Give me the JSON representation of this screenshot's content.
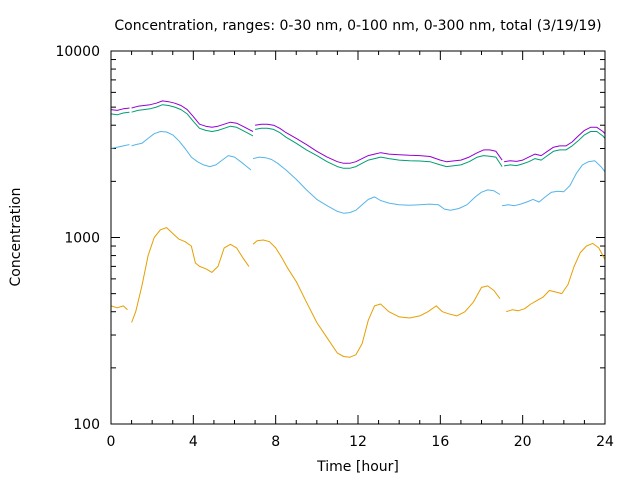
{
  "chart_data": {
    "type": "line",
    "title": "Concentration, ranges: 0-30 nm, 0-100 nm, 0-300 nm, total (3/19/19)",
    "xlabel": "Time [hour]",
    "ylabel": "Concentration",
    "xlim": [
      0,
      24
    ],
    "ylim": [
      100,
      10000
    ],
    "yscale": "log",
    "grid": false,
    "legend": "none",
    "x_ticks": [
      0,
      4,
      8,
      12,
      16,
      20,
      24
    ],
    "x_tick_labels": [
      "0",
      "4",
      "8",
      "12",
      "16",
      "20",
      "24"
    ],
    "y_ticks": [
      100,
      1000,
      10000
    ],
    "y_tick_labels": [
      "100",
      "1000",
      "10000"
    ],
    "series": [
      {
        "color": "#e69f00",
        "segments": [
          {
            "x": [
              0,
              0.3,
              0.6,
              0.8
            ],
            "y": [
              430,
              420,
              430,
              410
            ]
          },
          {
            "x": [
              1,
              1.2,
              1.5,
              1.8,
              2.1,
              2.4,
              2.7,
              3.0,
              3.3,
              3.6,
              3.9,
              4.1,
              4.3,
              4.6,
              4.9,
              5.2,
              5.5,
              5.8,
              6.1,
              6.4,
              6.7
            ],
            "y": [
              350,
              400,
              550,
              800,
              1000,
              1100,
              1130,
              1050,
              980,
              950,
              900,
              730,
              700,
              680,
              650,
              700,
              880,
              920,
              880,
              780,
              700
            ]
          },
          {
            "x": [
              6.9,
              7.1,
              7.4,
              7.7,
              8.0,
              8.3,
              8.6,
              9.0,
              9.5,
              10.0,
              10.5,
              11.0,
              11.3,
              11.6,
              11.9,
              12.2,
              12.5,
              12.8,
              13.1,
              13.5,
              14.0,
              14.5,
              15.0,
              15.4,
              15.8,
              16.1,
              16.4,
              16.8,
              17.2,
              17.6,
              18.0,
              18.3,
              18.6,
              18.9
            ],
            "y": [
              920,
              960,
              970,
              950,
              880,
              780,
              680,
              580,
              450,
              350,
              290,
              240,
              230,
              228,
              235,
              270,
              360,
              430,
              440,
              400,
              375,
              370,
              380,
              400,
              430,
              400,
              390,
              380,
              400,
              450,
              540,
              550,
              520,
              470
            ]
          },
          {
            "x": [
              19.2,
              19.5,
              19.8,
              20.1,
              20.4,
              20.7,
              21.0,
              21.3,
              21.6,
              21.9,
              22.2,
              22.5,
              22.8,
              23.1,
              23.4,
              23.7,
              24.0
            ],
            "y": [
              400,
              410,
              405,
              415,
              440,
              460,
              480,
              520,
              510,
              500,
              560,
              700,
              830,
              900,
              930,
              880,
              760
            ]
          }
        ]
      },
      {
        "color": "#56b4e9",
        "segments": [
          {
            "x": [
              0,
              0.3,
              0.6,
              0.9
            ],
            "y": [
              3000,
              3050,
              3100,
              3150
            ]
          },
          {
            "x": [
              1.0,
              1.2,
              1.5,
              1.8,
              2.1,
              2.4,
              2.7,
              3.0,
              3.3,
              3.6,
              3.9,
              4.2,
              4.5,
              4.8,
              5.1,
              5.4,
              5.7,
              6.0,
              6.3,
              6.6,
              6.8
            ],
            "y": [
              3100,
              3150,
              3200,
              3400,
              3600,
              3700,
              3680,
              3550,
              3300,
              3000,
              2700,
              2550,
              2450,
              2400,
              2450,
              2600,
              2750,
              2700,
              2550,
              2400,
              2300
            ]
          },
          {
            "x": [
              6.9,
              7.2,
              7.5,
              7.8,
              8.1,
              8.5,
              9.0,
              9.5,
              10.0,
              10.5,
              11.0,
              11.3,
              11.6,
              11.9,
              12.2,
              12.5,
              12.8,
              13.1,
              13.5,
              14.0,
              14.5,
              15.0,
              15.5,
              15.9,
              16.2,
              16.5,
              16.9,
              17.3,
              17.7,
              18.0,
              18.3,
              18.6,
              18.9
            ],
            "y": [
              2650,
              2700,
              2680,
              2620,
              2500,
              2300,
              2050,
              1800,
              1600,
              1480,
              1380,
              1350,
              1360,
              1400,
              1500,
              1600,
              1650,
              1580,
              1530,
              1500,
              1490,
              1500,
              1510,
              1500,
              1420,
              1400,
              1430,
              1500,
              1650,
              1750,
              1800,
              1780,
              1700
            ]
          },
          {
            "x": [
              19.0,
              19.3,
              19.6,
              19.9,
              20.2,
              20.5,
              20.8,
              21.1,
              21.4,
              21.7,
              22.0,
              22.3,
              22.6,
              22.9,
              23.2,
              23.5,
              23.8,
              24.0
            ],
            "y": [
              1480,
              1500,
              1480,
              1510,
              1550,
              1600,
              1550,
              1650,
              1750,
              1770,
              1760,
              1900,
              2200,
              2450,
              2550,
              2580,
              2400,
              2250
            ]
          }
        ]
      },
      {
        "color": "#009e73",
        "segments": [
          {
            "x": [
              0,
              0.3,
              0.6,
              0.9
            ],
            "y": [
              4600,
              4550,
              4650,
              4700
            ]
          },
          {
            "x": [
              1.0,
              1.3,
              1.6,
              1.9,
              2.2,
              2.5,
              2.8,
              3.1,
              3.4,
              3.7,
              4.0,
              4.3,
              4.6,
              4.9,
              5.2,
              5.5,
              5.8,
              6.1,
              6.4,
              6.7,
              6.9
            ],
            "y": [
              4700,
              4800,
              4850,
              4900,
              5000,
              5150,
              5100,
              5000,
              4850,
              4600,
              4200,
              3850,
              3750,
              3700,
              3750,
              3850,
              3950,
              3900,
              3750,
              3600,
              3500
            ]
          },
          {
            "x": [
              7.0,
              7.3,
              7.6,
              7.9,
              8.2,
              8.5,
              9.0,
              9.5,
              10.0,
              10.5,
              11.0,
              11.3,
              11.6,
              11.9,
              12.2,
              12.5,
              12.8,
              13.1,
              13.5,
              14.0,
              14.5,
              15.0,
              15.5,
              16.0,
              16.3,
              16.6,
              17.0,
              17.4,
              17.8,
              18.1,
              18.4,
              18.7,
              19.0
            ],
            "y": [
              3800,
              3850,
              3850,
              3800,
              3650,
              3450,
              3200,
              2950,
              2750,
              2550,
              2400,
              2350,
              2350,
              2400,
              2500,
              2600,
              2650,
              2700,
              2650,
              2600,
              2580,
              2570,
              2550,
              2450,
              2400,
              2420,
              2450,
              2550,
              2700,
              2750,
              2730,
              2700,
              2400
            ]
          },
          {
            "x": [
              19.1,
              19.4,
              19.7,
              20.0,
              20.3,
              20.6,
              20.9,
              21.2,
              21.5,
              21.8,
              22.1,
              22.4,
              22.7,
              23.0,
              23.3,
              23.6,
              23.9,
              24.0
            ],
            "y": [
              2420,
              2450,
              2430,
              2480,
              2550,
              2650,
              2600,
              2750,
              2900,
              2950,
              2950,
              3100,
              3300,
              3550,
              3700,
              3700,
              3500,
              3400
            ]
          }
        ]
      },
      {
        "color": "#9400d3",
        "segments": [
          {
            "x": [
              0,
              0.3,
              0.6,
              0.9
            ],
            "y": [
              4850,
              4800,
              4900,
              4950
            ]
          },
          {
            "x": [
              1.0,
              1.3,
              1.6,
              1.9,
              2.2,
              2.5,
              2.8,
              3.1,
              3.4,
              3.7,
              4.0,
              4.3,
              4.6,
              4.9,
              5.2,
              5.5,
              5.8,
              6.1,
              6.4,
              6.7,
              6.9
            ],
            "y": [
              4950,
              5050,
              5100,
              5150,
              5250,
              5400,
              5350,
              5250,
              5100,
              4850,
              4450,
              4050,
              3950,
              3900,
              3950,
              4050,
              4150,
              4100,
              3950,
              3800,
              3700
            ]
          },
          {
            "x": [
              7.0,
              7.3,
              7.6,
              7.9,
              8.2,
              8.5,
              9.0,
              9.5,
              10.0,
              10.5,
              11.0,
              11.3,
              11.6,
              11.9,
              12.2,
              12.5,
              12.8,
              13.1,
              13.5,
              14.0,
              14.5,
              15.0,
              15.5,
              16.0,
              16.3,
              16.6,
              17.0,
              17.4,
              17.8,
              18.1,
              18.4,
              18.7,
              19.0
            ],
            "y": [
              4000,
              4050,
              4050,
              4000,
              3850,
              3650,
              3400,
              3150,
              2900,
              2700,
              2550,
              2500,
              2500,
              2550,
              2650,
              2750,
              2800,
              2850,
              2800,
              2780,
              2760,
              2750,
              2720,
              2600,
              2550,
              2570,
              2600,
              2700,
              2850,
              2950,
              2950,
              2900,
              2600
            ]
          },
          {
            "x": [
              19.1,
              19.4,
              19.7,
              20.0,
              20.3,
              20.6,
              20.9,
              21.2,
              21.5,
              21.8,
              22.1,
              22.4,
              22.7,
              23.0,
              23.3,
              23.6,
              23.9,
              24.0
            ],
            "y": [
              2550,
              2580,
              2560,
              2600,
              2700,
              2800,
              2750,
              2900,
              3050,
              3100,
              3100,
              3250,
              3500,
              3750,
              3900,
              3900,
              3700,
              3600
            ]
          }
        ]
      }
    ]
  }
}
